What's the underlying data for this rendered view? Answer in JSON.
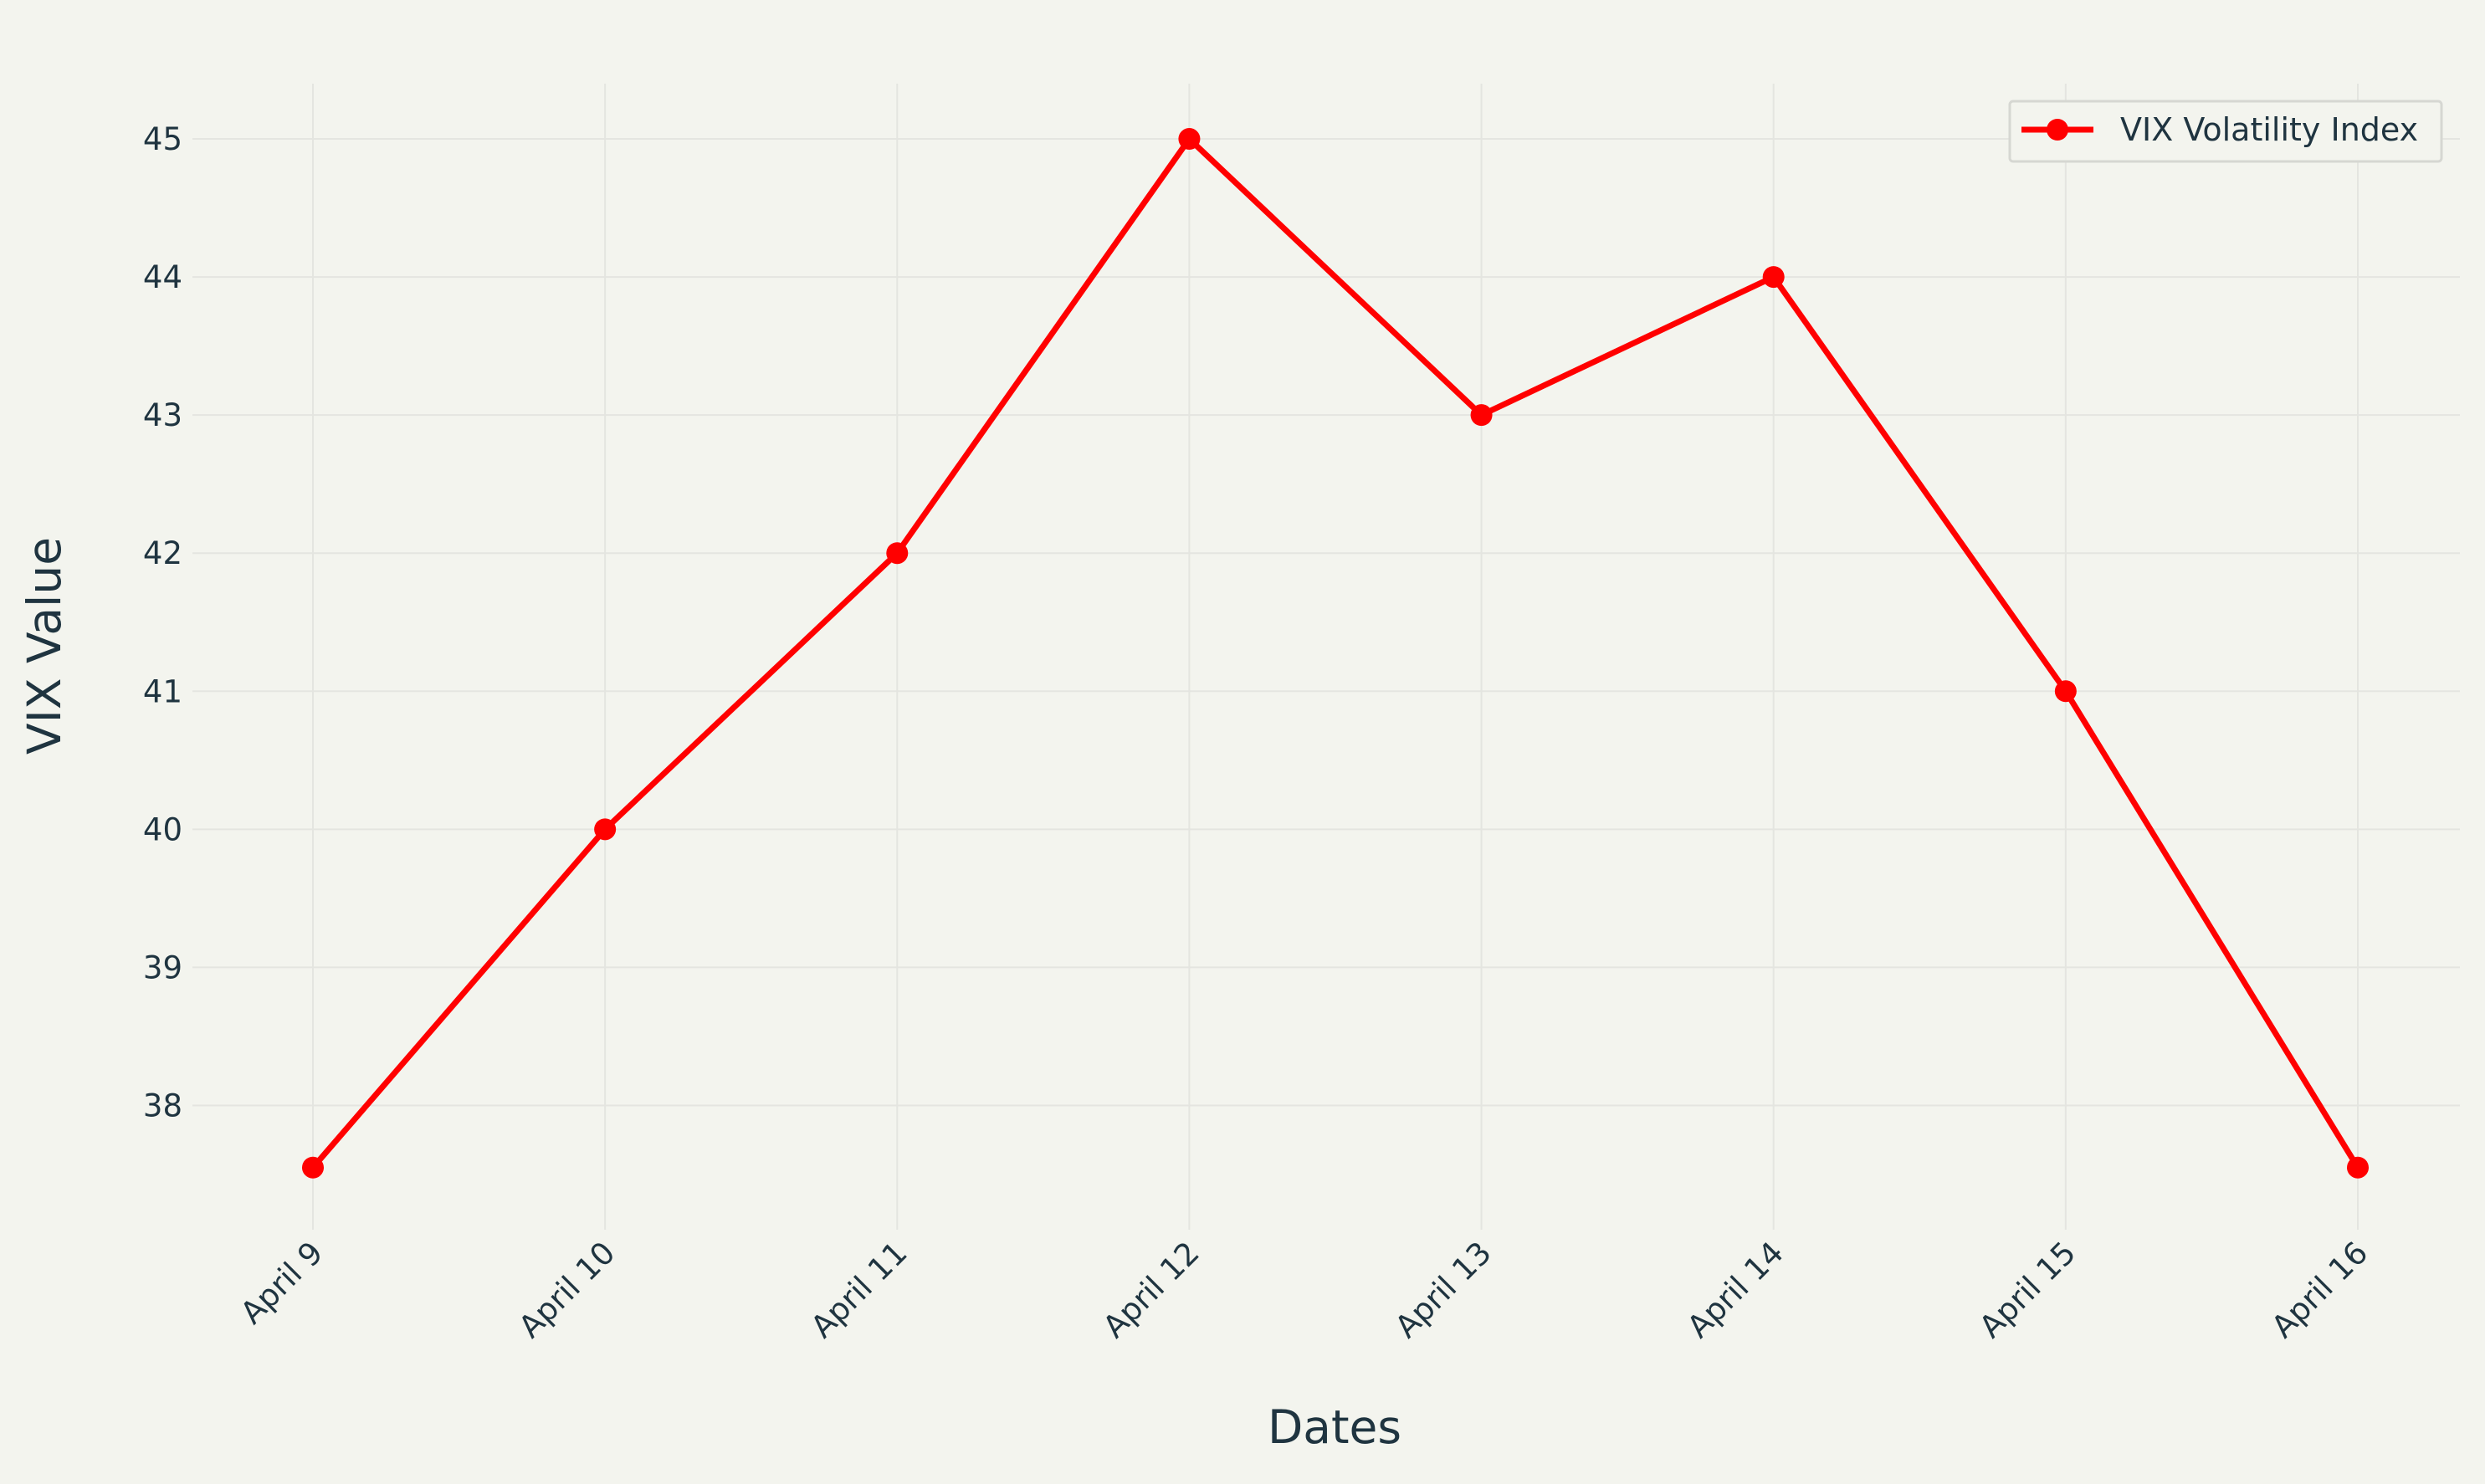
{
  "chart_data": {
    "type": "line",
    "title": "",
    "xlabel": "Dates",
    "ylabel": "VIX Value",
    "categories": [
      "April 9",
      "April 10",
      "April 11",
      "April 12",
      "April 13",
      "April 14",
      "April 15",
      "April 16"
    ],
    "series": [
      {
        "name": "VIX Volatility Index",
        "values": [
          37.55,
          40,
          42,
          45,
          43,
          44,
          41,
          37.55
        ],
        "color": "#ff0000"
      }
    ],
    "ylim": [
      37.1,
      45.4
    ],
    "yticks": [
      38,
      39,
      40,
      41,
      42,
      43,
      44,
      45
    ],
    "grid": true,
    "legend_position": "top-right",
    "colors": {
      "background": "#f3f4ee",
      "grid": "#e4e5e0",
      "text": "#1f3440",
      "line": "#ff0000"
    }
  }
}
